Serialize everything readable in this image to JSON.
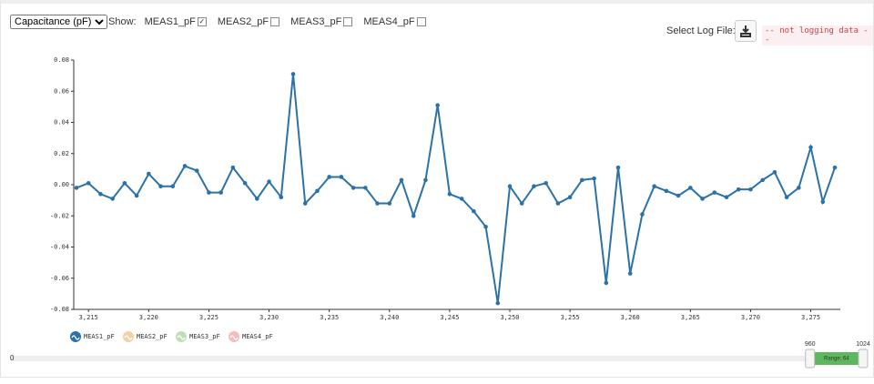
{
  "controls": {
    "dropdown": "Capacitance (pF)",
    "show_label": "Show:",
    "checkboxes": [
      {
        "label": "MEAS1_pF",
        "checked": true
      },
      {
        "label": "MEAS2_pF",
        "checked": false
      },
      {
        "label": "MEAS3_pF",
        "checked": false
      },
      {
        "label": "MEAS4_pF",
        "checked": false
      }
    ],
    "log_label": "Select Log File:",
    "log_status": "-- not logging data --"
  },
  "chart_data": {
    "type": "line",
    "x": [
      3214,
      3215,
      3216,
      3217,
      3218,
      3219,
      3220,
      3221,
      3222,
      3223,
      3224,
      3225,
      3226,
      3227,
      3228,
      3229,
      3230,
      3231,
      3232,
      3233,
      3234,
      3235,
      3236,
      3237,
      3238,
      3239,
      3240,
      3241,
      3242,
      3243,
      3244,
      3245,
      3246,
      3247,
      3248,
      3249,
      3250,
      3251,
      3252,
      3253,
      3254,
      3255,
      3256,
      3257,
      3258,
      3259,
      3260,
      3261,
      3262,
      3263,
      3264,
      3265,
      3266,
      3267,
      3268,
      3269,
      3270,
      3271,
      3272,
      3273,
      3274,
      3275,
      3276,
      3277
    ],
    "series": [
      {
        "name": "MEAS1_pF",
        "color": "#2a72a8",
        "values": [
          -0.002,
          0.001,
          -0.006,
          -0.009,
          0.001,
          -0.007,
          0.007,
          -0.001,
          -0.001,
          0.012,
          0.009,
          -0.005,
          -0.005,
          0.011,
          0.001,
          -0.009,
          0.002,
          -0.008,
          0.071,
          -0.012,
          -0.004,
          0.005,
          0.005,
          -0.002,
          -0.002,
          -0.012,
          -0.012,
          0.003,
          -0.02,
          0.003,
          0.051,
          -0.006,
          -0.009,
          -0.017,
          -0.027,
          -0.076,
          -0.001,
          -0.012,
          -0.001,
          0.001,
          -0.012,
          -0.008,
          0.003,
          0.004,
          -0.063,
          0.011,
          -0.057,
          -0.019,
          -0.001,
          -0.004,
          -0.007,
          -0.002,
          -0.009,
          -0.005,
          -0.008,
          -0.003,
          -0.003,
          0.003,
          0.008,
          -0.008,
          -0.002,
          0.024,
          -0.011,
          0.011
        ]
      }
    ],
    "hidden_series": [
      {
        "name": "MEAS2_pF",
        "color": "#f7cfa6"
      },
      {
        "name": "MEAS3_pF",
        "color": "#bfe0b6"
      },
      {
        "name": "MEAS4_pF",
        "color": "#f5bcbc"
      }
    ],
    "xlim": [
      3214,
      3277
    ],
    "ylim": [
      -0.08,
      0.08
    ],
    "xticks": [
      {
        "value": 3215,
        "label": "3,215"
      },
      {
        "value": 3220,
        "label": "3,220"
      },
      {
        "value": 3225,
        "label": "3,225"
      },
      {
        "value": 3230,
        "label": "3,230"
      },
      {
        "value": 3235,
        "label": "3,235"
      },
      {
        "value": 3240,
        "label": "3,240"
      },
      {
        "value": 3245,
        "label": "3,245"
      },
      {
        "value": 3250,
        "label": "3,250"
      },
      {
        "value": 3255,
        "label": "3,255"
      },
      {
        "value": 3260,
        "label": "3,260"
      },
      {
        "value": 3265,
        "label": "3,265"
      },
      {
        "value": 3270,
        "label": "3,270"
      },
      {
        "value": 3275,
        "label": "3,275"
      }
    ],
    "yticks": [
      -0.08,
      -0.06,
      -0.04,
      -0.02,
      {
        "value": 0,
        "label": "0.00"
      },
      0.02,
      0.04,
      0.06,
      0.08
    ]
  },
  "slider": {
    "min": 0,
    "max": 1024,
    "low": 960,
    "high": 1024,
    "range_label": "Range: 64"
  }
}
